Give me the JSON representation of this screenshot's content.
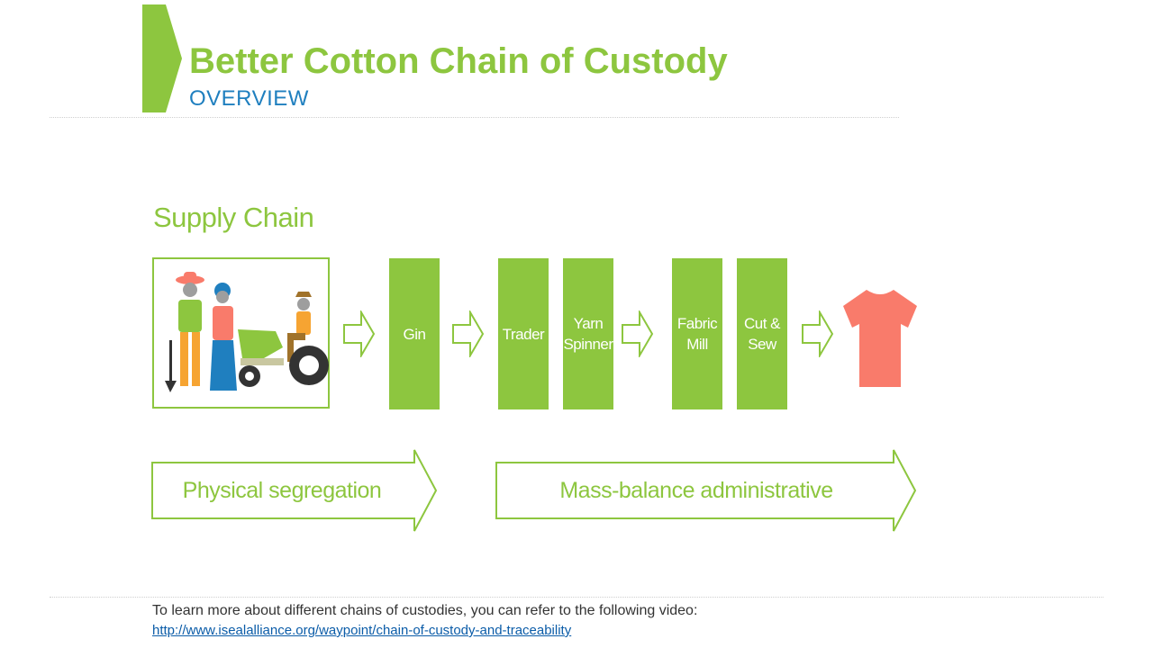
{
  "slide": {
    "title": "Better Cotton Chain of Custody",
    "subtitle": "OVERVIEW"
  },
  "diagram": {
    "heading": "Supply Chain",
    "stages": [
      {
        "label": "Gin"
      },
      {
        "label": "Trader"
      },
      {
        "label": "Yarn\nSpinner"
      },
      {
        "label": "Fabric\nMill"
      },
      {
        "label": "Cut &\nSew"
      }
    ],
    "banners": [
      {
        "label": "Physical segregation"
      },
      {
        "label": "Mass-balance administrative"
      }
    ],
    "icons": [
      "farmers-tractor-icon",
      "right-arrow-icon",
      "tshirt-icon"
    ],
    "colors": {
      "accent": "#8dc63f",
      "tshirt": "#f97b6b",
      "subtitle": "#1f7fbf"
    }
  },
  "footer": {
    "text": "To learn more about different chains of custodies, you can refer to the following video:",
    "link": "http://www.isealalliance.org/waypoint/chain-of-custody-and-traceability"
  }
}
